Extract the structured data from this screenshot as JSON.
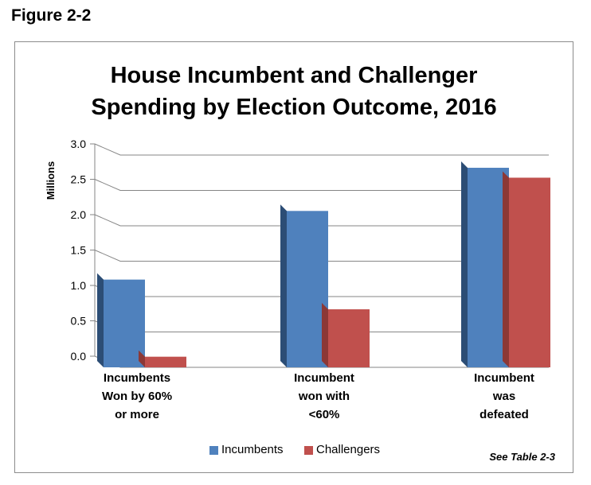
{
  "figure_label": "Figure 2-2",
  "note": "See Table 2-3",
  "colors": {
    "incumbents": "#4f81bd",
    "incumbents_side": "#2c4d75",
    "challengers": "#c0504d",
    "challengers_side": "#8c3836",
    "axis": "#868686",
    "grid": "#868686"
  },
  "chart_data": {
    "type": "bar",
    "title_lines": [
      "House Incumbent and Challenger",
      "Spending by Election Outcome, 2016"
    ],
    "ylabel": "Millions",
    "xlabel": "",
    "ylim": [
      0,
      3
    ],
    "yticks": [
      "0.0",
      "0.5",
      "1.0",
      "1.5",
      "2.0",
      "2.5",
      "3.0"
    ],
    "grid": true,
    "legend_position": "bottom",
    "categories": [
      [
        "Incumbents",
        "Won by 60%",
        "or more"
      ],
      [
        "Incumbent",
        "won with",
        "<60%"
      ],
      [
        "Incumbent",
        "was",
        "defeated"
      ]
    ],
    "series": [
      {
        "name": "Incumbents",
        "values": [
          1.24,
          2.21,
          2.82
        ]
      },
      {
        "name": "Challengers",
        "values": [
          0.15,
          0.82,
          2.68
        ]
      }
    ]
  }
}
